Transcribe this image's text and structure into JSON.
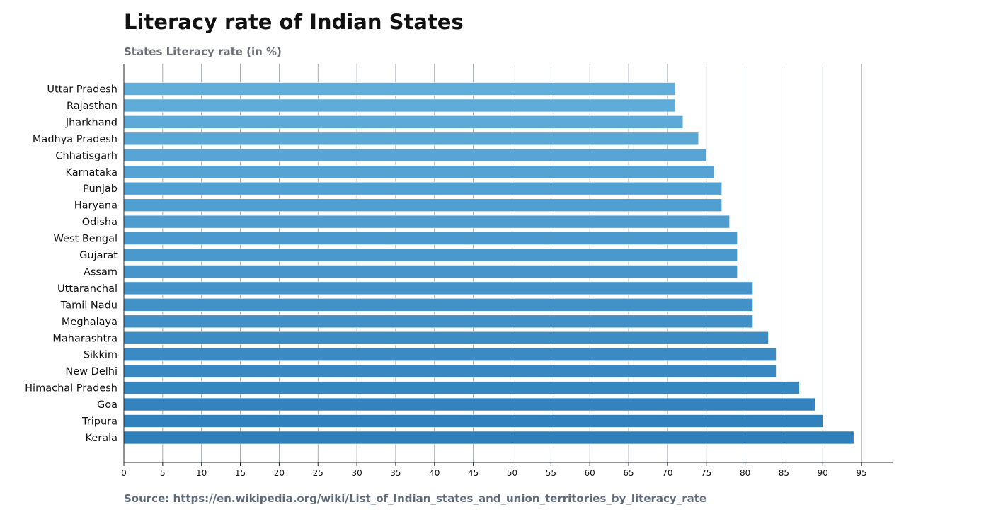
{
  "header": {
    "title": "Literacy rate of Indian States",
    "subtitle": "States Literacy rate (in %)"
  },
  "footer": {
    "source": "Source: https://en.wikipedia.org/wiki/List_of_Indian_states_and_union_territories_by_literacy_rate"
  },
  "chart_data": {
    "type": "bar",
    "orientation": "horizontal",
    "title": "Literacy rate of Indian States",
    "subtitle": "States Literacy rate (in %)",
    "xlabel": "",
    "ylabel": "",
    "xlim": [
      0,
      99
    ],
    "xticks": [
      0,
      5,
      10,
      15,
      20,
      25,
      30,
      35,
      40,
      45,
      50,
      55,
      60,
      65,
      70,
      75,
      80,
      85,
      90,
      95
    ],
    "grid": "vertical",
    "legend": "none",
    "colors": {
      "bar_light": "#62aedb",
      "bar_dark": "#2f7fbb",
      "grid": "#8f98a3",
      "axis": "#222222"
    },
    "categories": [
      "Uttar Pradesh",
      "Rajasthan",
      "Jharkhand",
      "Madhya Pradesh",
      "Chhatisgarh",
      "Karnataka",
      "Punjab",
      "Haryana",
      "Odisha",
      "West Bengal",
      "Gujarat",
      "Assam",
      "Uttaranchal",
      "Tamil Nadu",
      "Meghalaya",
      "Maharashtra",
      "Sikkim",
      "New Delhi",
      "Himachal Pradesh",
      "Goa",
      "Tripura",
      "Kerala"
    ],
    "values": [
      71,
      71,
      72,
      74,
      75,
      76,
      77,
      77,
      78,
      79,
      79,
      79,
      81,
      81,
      81,
      83,
      84,
      84,
      87,
      89,
      90,
      94
    ]
  }
}
